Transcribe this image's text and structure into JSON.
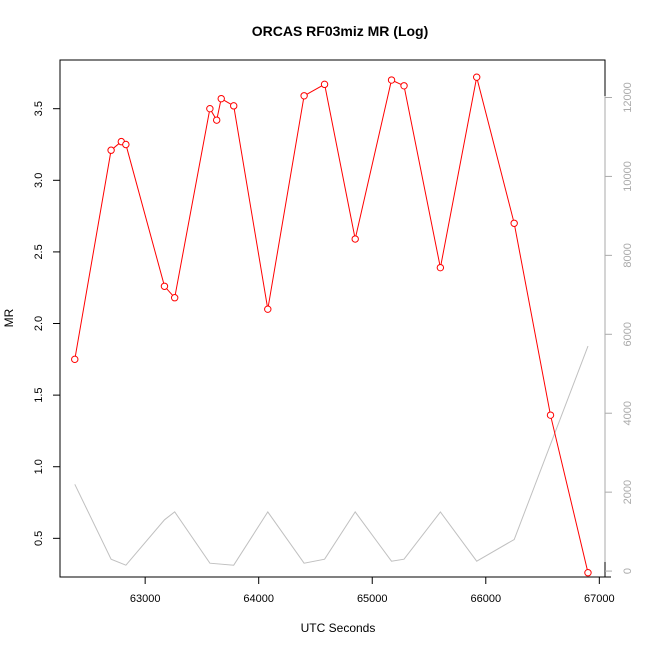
{
  "chart_data": {
    "type": "line",
    "title": "ORCAS RF03miz MR (Log)",
    "xlabel": "UTC Seconds",
    "ylabel": "MR",
    "xlim": [
      62250,
      67050
    ],
    "ylim": [
      0.23,
      3.84
    ],
    "y2lim": [
      -150,
      12950
    ],
    "x_ticks": [
      63000,
      64000,
      65000,
      66000,
      67000
    ],
    "y_ticks": [
      0.5,
      1.0,
      1.5,
      2.0,
      2.5,
      3.0,
      3.5
    ],
    "y_tick_labels": [
      "0.5",
      "1.0",
      "1.5",
      "2.0",
      "2.5",
      "3.0",
      "3.5"
    ],
    "y2_ticks": [
      0,
      2000,
      4000,
      6000,
      8000,
      10000,
      12000
    ],
    "series": [
      {
        "axis": "left",
        "color": "#ff0000",
        "marker": "open-circle",
        "x": [
          62380,
          62700,
          62790,
          62830,
          63170,
          63260,
          63570,
          63630,
          63670,
          63780,
          64080,
          64400,
          64580,
          64850,
          65170,
          65280,
          65600,
          65920,
          66250,
          66570,
          66900
        ],
        "y": [
          1.75,
          3.21,
          3.27,
          3.25,
          2.26,
          2.18,
          3.5,
          3.42,
          3.57,
          3.52,
          2.1,
          3.59,
          3.67,
          2.59,
          3.7,
          3.66,
          2.39,
          3.72,
          2.7,
          1.36,
          0.26
        ]
      },
      {
        "axis": "right",
        "color": "#c0c0c0",
        "marker": "none",
        "x": [
          62380,
          62700,
          62830,
          63170,
          63260,
          63570,
          63780,
          64080,
          64400,
          64580,
          64850,
          65170,
          65280,
          65600,
          65920,
          66250,
          66900
        ],
        "y": [
          2200,
          300,
          150,
          1300,
          1500,
          200,
          150,
          1500,
          200,
          300,
          1500,
          250,
          300,
          1500,
          250,
          800,
          5700
        ]
      }
    ]
  }
}
